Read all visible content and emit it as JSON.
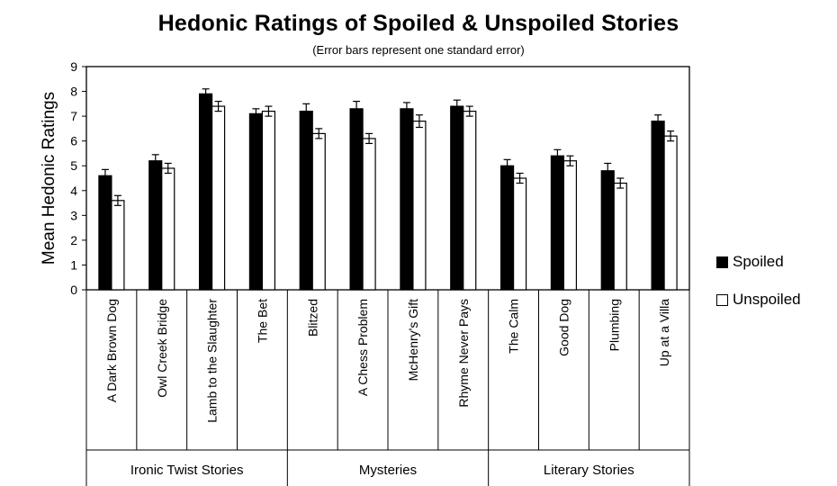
{
  "colors": {
    "spoiled": "#000000",
    "unspoiled": "#ffffff",
    "axis": "#000000"
  },
  "chart_data": {
    "type": "bar",
    "title": "Hedonic Ratings of Spoiled & Unspoiled Stories",
    "subtitle": "(Error bars represent one standard error)",
    "ylabel": "Mean Hedonic Ratings",
    "xlabel": "",
    "ylim": [
      0,
      9
    ],
    "yticks": [
      0,
      1,
      2,
      3,
      4,
      5,
      6,
      7,
      8,
      9
    ],
    "grid": false,
    "legend_position": "right",
    "categories": [
      "A Dark Brown Dog",
      "Owl Creek Bridge",
      "Lamb to the Slaughter",
      "The Bet",
      "Blitzed",
      "A Chess Problem",
      "McHenry's Gift",
      "Rhyme Never Pays",
      "The Calm",
      "Good Dog",
      "Plumbing",
      "Up at a Villa"
    ],
    "groups": [
      {
        "label": "Ironic Twist Stories",
        "count": 4
      },
      {
        "label": "Mysteries",
        "count": 4
      },
      {
        "label": "Literary Stories",
        "count": 4
      }
    ],
    "series": [
      {
        "name": "Spoiled",
        "color": "#000000",
        "values": [
          4.6,
          5.2,
          7.9,
          7.1,
          7.2,
          7.3,
          7.3,
          7.4,
          5.0,
          5.4,
          4.8,
          6.8
        ],
        "errors": [
          0.25,
          0.25,
          0.2,
          0.2,
          0.3,
          0.3,
          0.25,
          0.25,
          0.25,
          0.25,
          0.3,
          0.25
        ]
      },
      {
        "name": "Unspoiled",
        "color": "#ffffff",
        "values": [
          3.6,
          4.9,
          7.4,
          7.2,
          6.3,
          6.1,
          6.8,
          7.2,
          4.5,
          5.2,
          4.3,
          6.2
        ],
        "errors": [
          0.2,
          0.2,
          0.2,
          0.2,
          0.2,
          0.2,
          0.25,
          0.2,
          0.2,
          0.2,
          0.2,
          0.2
        ]
      }
    ]
  }
}
